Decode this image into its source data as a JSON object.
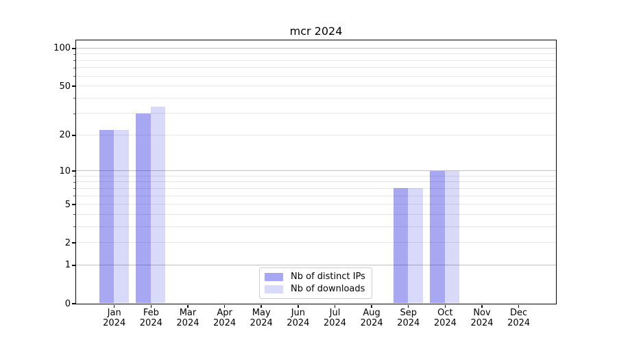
{
  "title": "mcr 2024",
  "chart_data": {
    "type": "bar",
    "title": "mcr 2024",
    "categories": [
      "Jan",
      "Feb",
      "Mar",
      "Apr",
      "May",
      "Jun",
      "Jul",
      "Aug",
      "Sep",
      "Oct",
      "Nov",
      "Dec"
    ],
    "category_year": "2024",
    "series": [
      {
        "name": "Nb of distinct IPs",
        "color": "rgba(2,2,218,0.35)",
        "color_solid": "#a6a6f2",
        "values": [
          22,
          30,
          0,
          0,
          0,
          0,
          0,
          0,
          7,
          10,
          0,
          0
        ]
      },
      {
        "name": "Nb of downloads",
        "color": "rgba(2,2,218,0.15)",
        "color_solid": "#d9d9f8",
        "values": [
          22,
          34,
          0,
          0,
          0,
          0,
          0,
          0,
          7,
          10,
          0,
          0
        ]
      }
    ],
    "yscale": "log1p",
    "ylim": [
      0,
      116
    ],
    "yticks": [
      0,
      1,
      2,
      5,
      10,
      20,
      50,
      100
    ],
    "ytick_labels": [
      "0",
      "1",
      "2",
      "5",
      "10",
      "20",
      "50",
      "100"
    ],
    "major_gridlines": [
      1,
      10,
      100
    ],
    "minor_gridlines": [
      2,
      3,
      4,
      5,
      6,
      7,
      8,
      9,
      20,
      30,
      40,
      50,
      60,
      70,
      80,
      90
    ],
    "grid": "horizontal",
    "legend_position": "lower center",
    "colors": {
      "grid_major": "#c0c0c0",
      "grid_minor": "#e7e7e7",
      "axis": "#000000",
      "legend_border": "#cccccc"
    }
  }
}
